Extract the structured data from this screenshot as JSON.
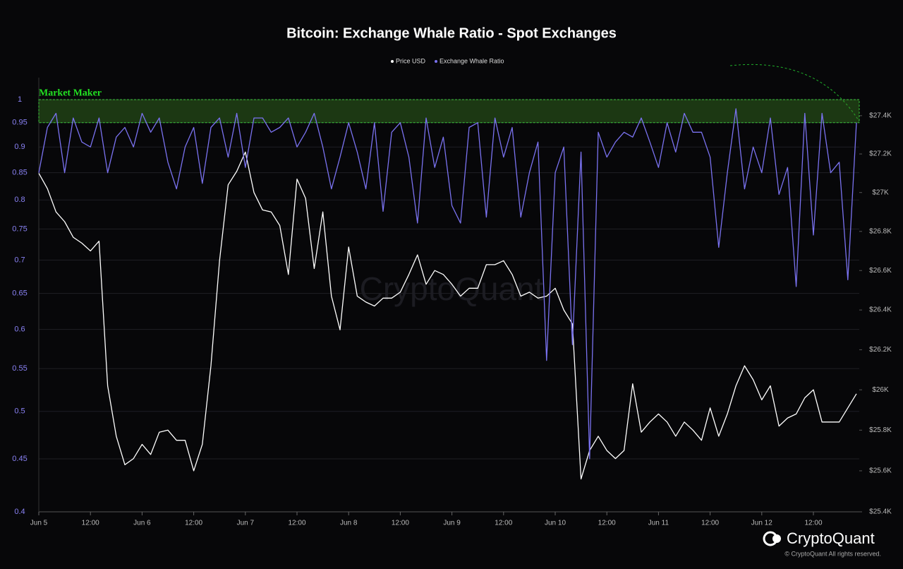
{
  "chart_data": {
    "type": "line",
    "title": "Bitcoin: Exchange Whale Ratio - Spot Exchanges",
    "categories": [
      "Jun 5",
      null,
      null,
      null,
      null,
      null,
      "12:00",
      null,
      null,
      null,
      null,
      null,
      "Jun 6",
      null,
      null,
      null,
      null,
      null,
      "12:00",
      null,
      null,
      null,
      null,
      null,
      "Jun 7",
      null,
      null,
      null,
      null,
      null,
      "12:00",
      null,
      null,
      null,
      null,
      null,
      "Jun 8",
      null,
      null,
      null,
      null,
      null,
      "12:00",
      null,
      null,
      null,
      null,
      null,
      "Jun 9",
      null,
      null,
      null,
      null,
      null,
      "12:00",
      null,
      null,
      null,
      null,
      null,
      "Jun 10",
      null,
      null,
      null,
      null,
      null,
      "12:00",
      null,
      null,
      null,
      null,
      null,
      "Jun 11",
      null,
      null,
      null,
      null,
      null,
      "12:00",
      null,
      null,
      null,
      null,
      null,
      "Jun 12",
      null,
      null,
      null,
      null,
      null,
      "12:00",
      null,
      null,
      null,
      null,
      null
    ],
    "series": [
      {
        "name": "Price USD",
        "color": "#ffffff",
        "axis": "y2",
        "values": [
          27100,
          27020,
          26900,
          26850,
          26770,
          26740,
          26700,
          26750,
          26020,
          25770,
          25630,
          25660,
          25730,
          25680,
          25790,
          25800,
          25750,
          25750,
          25600,
          25730,
          26120,
          26650,
          27040,
          27110,
          27210,
          27000,
          26910,
          26900,
          26830,
          26580,
          27070,
          26970,
          26610,
          26900,
          26470,
          26300,
          26720,
          26470,
          26440,
          26420,
          26460,
          26460,
          26490,
          26580,
          26680,
          26530,
          26600,
          26580,
          26530,
          26470,
          26510,
          26510,
          26630,
          26630,
          26650,
          26580,
          26470,
          26490,
          26460,
          26470,
          26510,
          26400,
          26330,
          25560,
          25700,
          25770,
          25700,
          25660,
          25700,
          26030,
          25790,
          25840,
          25880,
          25840,
          25770,
          25840,
          25800,
          25750,
          25910,
          25770,
          25880,
          26020,
          26120,
          26050,
          25950,
          26020,
          25820,
          25860,
          25880,
          25960,
          26000,
          25840,
          25840,
          25840,
          25910,
          25980
        ]
      },
      {
        "name": "Exchange Whale Ratio",
        "color": "#7a72f0",
        "axis": "y",
        "values": [
          0.85,
          0.94,
          0.97,
          0.85,
          0.96,
          0.91,
          0.9,
          0.96,
          0.85,
          0.92,
          0.94,
          0.9,
          0.97,
          0.93,
          0.96,
          0.87,
          0.82,
          0.9,
          0.94,
          0.83,
          0.94,
          0.96,
          0.88,
          0.97,
          0.86,
          0.96,
          0.96,
          0.93,
          0.94,
          0.96,
          0.9,
          0.93,
          0.97,
          0.9,
          0.82,
          0.88,
          0.95,
          0.89,
          0.82,
          0.95,
          0.78,
          0.93,
          0.95,
          0.88,
          0.76,
          0.96,
          0.86,
          0.92,
          0.79,
          0.76,
          0.94,
          0.95,
          0.77,
          0.96,
          0.88,
          0.94,
          0.77,
          0.85,
          0.91,
          0.56,
          0.85,
          0.9,
          0.58,
          0.89,
          0.45,
          0.93,
          0.88,
          0.91,
          0.93,
          0.92,
          0.96,
          0.91,
          0.86,
          0.95,
          0.89,
          0.97,
          0.93,
          0.93,
          0.88,
          0.72,
          0.85,
          0.98,
          0.82,
          0.9,
          0.85,
          0.96,
          0.81,
          0.86,
          0.66,
          0.97,
          0.74,
          0.97,
          0.85,
          0.87,
          0.67,
          0.95
        ]
      }
    ],
    "ylim": [
      0.4,
      1.05
    ],
    "yscale": "log",
    "yticks": [
      0.4,
      0.45,
      0.5,
      0.55,
      0.6,
      0.65,
      0.7,
      0.75,
      0.8,
      0.85,
      0.9,
      0.95,
      1
    ],
    "y2lim": [
      25400,
      27600
    ],
    "y2scale": "log",
    "y2ticks": [
      {
        "value": 25400,
        "label": "$25.4K"
      },
      {
        "value": 25600,
        "label": "$25.6K"
      },
      {
        "value": 25800,
        "label": "$25.8K"
      },
      {
        "value": 26000,
        "label": "$26K"
      },
      {
        "value": 26200,
        "label": "$26.2K"
      },
      {
        "value": 26400,
        "label": "$26.4K"
      },
      {
        "value": 26600,
        "label": "$26.6K"
      },
      {
        "value": 26800,
        "label": "$26.8K"
      },
      {
        "value": 27000,
        "label": "$27K"
      },
      {
        "value": 27200,
        "label": "$27.2K"
      },
      {
        "value": 27400,
        "label": "$27.4K"
      }
    ],
    "annotations": [
      {
        "label": "Market Maker",
        "range": [
          0.95,
          1
        ]
      }
    ],
    "grid": true,
    "legend": "top",
    "watermark": "CryptoQuant",
    "brand": "CryptoQuant",
    "copyright": "© CryptoQuant All rights reserved."
  }
}
